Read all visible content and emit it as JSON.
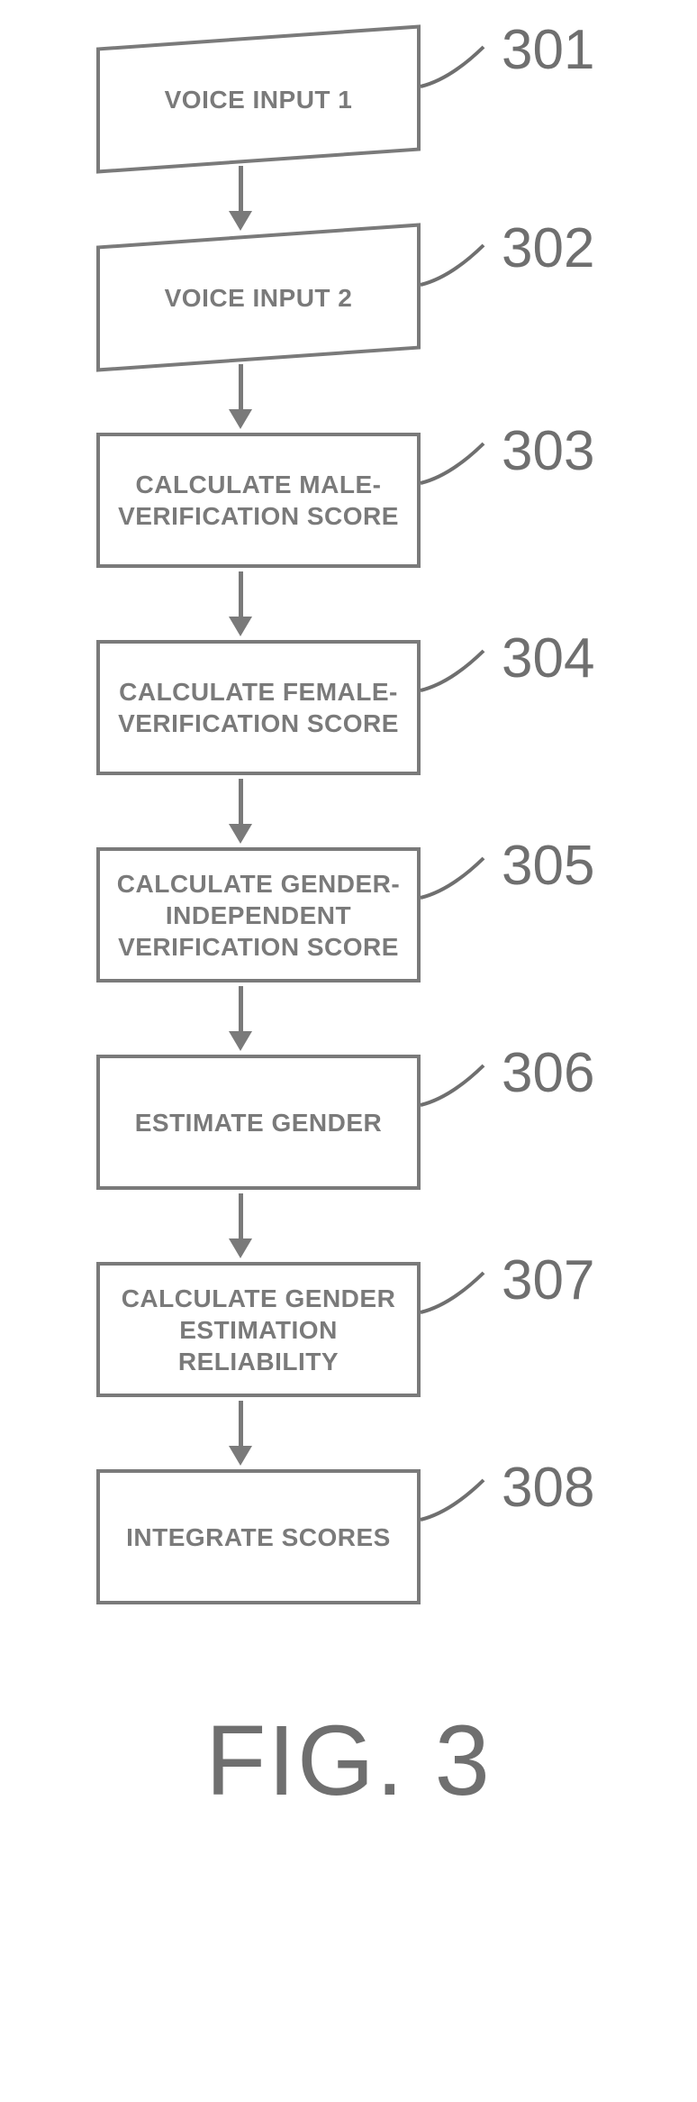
{
  "flowchart": {
    "type": "flowchart",
    "node_border_color": "#7a7a7a",
    "node_text_color": "#7a7a7a",
    "node_border_width": 4,
    "arrow_color": "#7a7a7a",
    "node_font_size": 28,
    "ref_label_font_size": 62,
    "ref_label_color": "#6f6f6f",
    "background_color": "#ffffff",
    "caption": "FIG. 3",
    "caption_font_size": 110,
    "nodes": [
      {
        "id": "n1",
        "shape": "parallelogram",
        "label": "VOICE INPUT 1",
        "ref": "301"
      },
      {
        "id": "n2",
        "shape": "parallelogram",
        "label": "VOICE INPUT 2",
        "ref": "302"
      },
      {
        "id": "n3",
        "shape": "rect",
        "label": "CALCULATE MALE-VERIFICATION SCORE",
        "ref": "303"
      },
      {
        "id": "n4",
        "shape": "rect",
        "label": "CALCULATE FEMALE-VERIFICATION SCORE",
        "ref": "304"
      },
      {
        "id": "n5",
        "shape": "rect",
        "label": "CALCULATE GENDER-INDEPENDENT VERIFICATION SCORE",
        "ref": "305"
      },
      {
        "id": "n6",
        "shape": "rect",
        "label": "ESTIMATE GENDER",
        "ref": "306"
      },
      {
        "id": "n7",
        "shape": "rect",
        "label": "CALCULATE GENDER ESTIMATION RELIABILITY",
        "ref": "307"
      },
      {
        "id": "n8",
        "shape": "rect",
        "label": "INTEGRATE SCORES",
        "ref": "308"
      }
    ],
    "edges": [
      {
        "from": "n1",
        "to": "n2"
      },
      {
        "from": "n2",
        "to": "n3"
      },
      {
        "from": "n3",
        "to": "n4"
      },
      {
        "from": "n4",
        "to": "n5"
      },
      {
        "from": "n5",
        "to": "n6"
      },
      {
        "from": "n6",
        "to": "n7"
      },
      {
        "from": "n7",
        "to": "n8"
      }
    ]
  }
}
